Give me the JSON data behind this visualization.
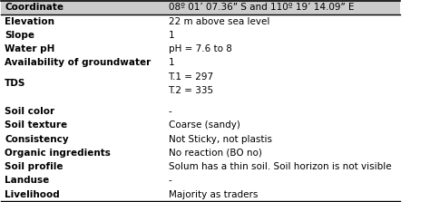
{
  "rows": [
    [
      "Coordinate",
      "08º 01’ 07.36” S and 110º 19’ 14.09” E"
    ],
    [
      "Elevation",
      "22 m above sea level"
    ],
    [
      "Slope",
      "1"
    ],
    [
      "Water pH",
      "pH = 7.6 to 8"
    ],
    [
      "Availability of groundwater",
      "1"
    ],
    [
      "TDS",
      "T.1 = 297\nT.2 = 335"
    ],
    [
      "",
      ""
    ],
    [
      "Soil color",
      "-"
    ],
    [
      "Soil texture",
      "Coarse (sandy)"
    ],
    [
      "Consistency",
      "Not Sticky, not plastis"
    ],
    [
      "Organic ingredients",
      "No reaction (BO no)"
    ],
    [
      "Soil profile",
      "Solum has a thin soil. Soil horizon is not visible"
    ],
    [
      "Landuse",
      "-"
    ],
    [
      "Livelihood",
      "Majority as traders"
    ]
  ],
  "header_row": 0,
  "col_split": 0.42,
  "background_color": "#ffffff",
  "header_bg": "#cccccc",
  "font_size": 7.5
}
